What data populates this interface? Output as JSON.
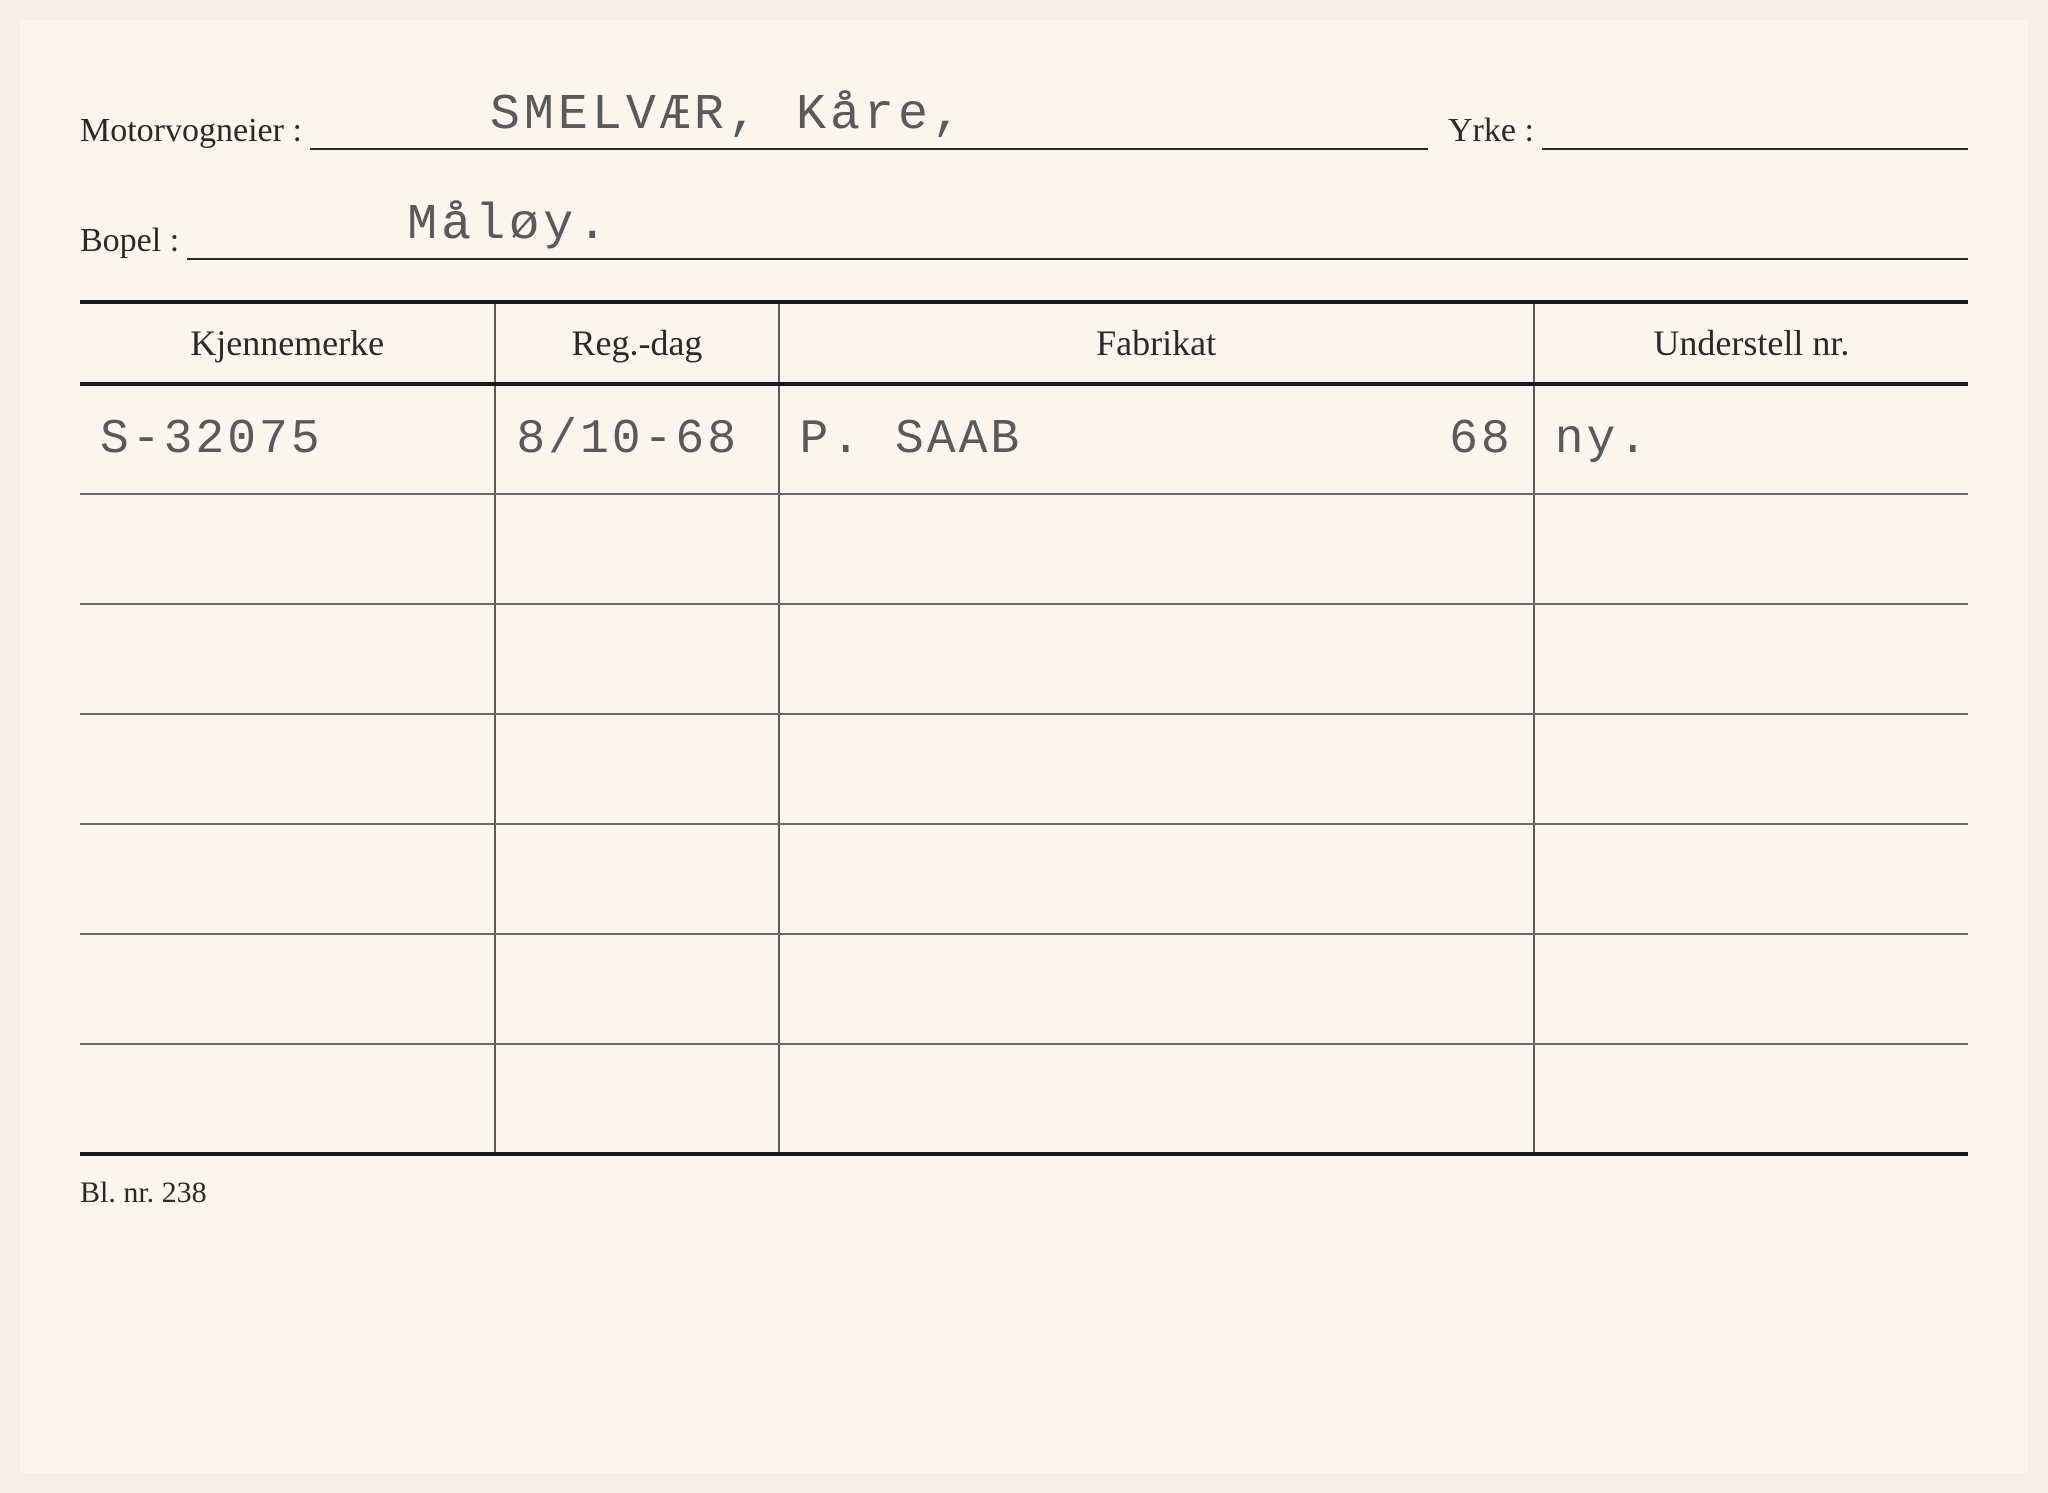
{
  "labels": {
    "motorvogneier": "Motorvogneier :",
    "yrke": "Yrke :",
    "bopel": "Bopel :"
  },
  "values": {
    "motorvogneier": "SMELVÆR, Kåre,",
    "yrke": "",
    "bopel": "Måløy."
  },
  "table": {
    "headers": {
      "kjennemerke": "Kjennemerke",
      "regdag": "Reg.-dag",
      "fabrikat": "Fabrikat",
      "understell": "Understell nr."
    },
    "rows": [
      {
        "kjennemerke": "S-32075",
        "regdag": "8/10-68",
        "fabrikat_left": "P.  SAAB",
        "fabrikat_right": "68",
        "understell": "ny."
      },
      {
        "kjennemerke": "",
        "regdag": "",
        "fabrikat_left": "",
        "fabrikat_right": "",
        "understell": ""
      },
      {
        "kjennemerke": "",
        "regdag": "",
        "fabrikat_left": "",
        "fabrikat_right": "",
        "understell": ""
      },
      {
        "kjennemerke": "",
        "regdag": "",
        "fabrikat_left": "",
        "fabrikat_right": "",
        "understell": ""
      },
      {
        "kjennemerke": "",
        "regdag": "",
        "fabrikat_left": "",
        "fabrikat_right": "",
        "understell": ""
      },
      {
        "kjennemerke": "",
        "regdag": "",
        "fabrikat_left": "",
        "fabrikat_right": "",
        "understell": ""
      },
      {
        "kjennemerke": "",
        "regdag": "",
        "fabrikat_left": "",
        "fabrikat_right": "",
        "understell": ""
      }
    ]
  },
  "footer": "Bl. nr. 238",
  "style": {
    "background": "#faf6ed",
    "text_color": "#2a2a2a",
    "typed_color": "#5a5a5a",
    "border_color": "#1a1a1a",
    "label_fontsize": 34,
    "typed_fontsize": 50,
    "header_fontsize": 36
  }
}
